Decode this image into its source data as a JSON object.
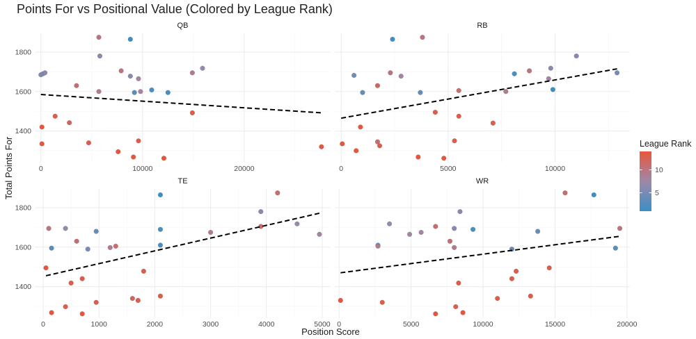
{
  "colors": {
    "rank_low": "#3a8fc4",
    "rank_mid": "#9e88a8",
    "rank_high": "#e8553c",
    "trend": "#000000"
  },
  "chart_data": {
    "type": "scatter",
    "title": "Points For vs Positional Value (Colored by League Rank)",
    "xlabel": "Position Score",
    "ylabel": "Total Points For",
    "grid": true,
    "legend": {
      "title": "League Rank",
      "placement": "right",
      "range": [
        1,
        14
      ],
      "ticks": [
        5,
        10
      ]
    },
    "ylim": [
      1240,
      1895
    ],
    "yticks": [
      1400,
      1600,
      1800
    ],
    "facets": [
      {
        "name": "QB",
        "xlim": [
          -600,
          28500
        ],
        "xticks": [
          0,
          10000,
          20000
        ],
        "xtick_labels": [
          "0",
          "10000",
          "20000"
        ],
        "trend": [
          [
            0,
            1585
          ],
          [
            27600,
            1492
          ]
        ],
        "points": [
          {
            "x": 0,
            "y": 1685,
            "rank": 6
          },
          {
            "x": 200,
            "y": 1690,
            "rank": 5
          },
          {
            "x": 400,
            "y": 1695,
            "rank": 6
          },
          {
            "x": 100,
            "y": 1420,
            "rank": 14
          },
          {
            "x": 100,
            "y": 1335,
            "rank": 14
          },
          {
            "x": 1400,
            "y": 1475,
            "rank": 13
          },
          {
            "x": 2800,
            "y": 1442,
            "rank": 12
          },
          {
            "x": 3500,
            "y": 1630,
            "rank": 11
          },
          {
            "x": 4700,
            "y": 1340,
            "rank": 13
          },
          {
            "x": 5700,
            "y": 1875,
            "rank": 10
          },
          {
            "x": 5800,
            "y": 1780,
            "rank": 6
          },
          {
            "x": 5700,
            "y": 1600,
            "rank": 9
          },
          {
            "x": 7600,
            "y": 1295,
            "rank": 14
          },
          {
            "x": 7900,
            "y": 1705,
            "rank": 10
          },
          {
            "x": 8800,
            "y": 1865,
            "rank": 1
          },
          {
            "x": 8800,
            "y": 1678,
            "rank": 6
          },
          {
            "x": 9200,
            "y": 1595,
            "rank": 3
          },
          {
            "x": 9100,
            "y": 1268,
            "rank": 14
          },
          {
            "x": 9600,
            "y": 1665,
            "rank": 8
          },
          {
            "x": 9600,
            "y": 1350,
            "rank": 13
          },
          {
            "x": 9800,
            "y": 1600,
            "rank": 8
          },
          {
            "x": 10900,
            "y": 1608,
            "rank": 2
          },
          {
            "x": 12100,
            "y": 1262,
            "rank": 14
          },
          {
            "x": 12500,
            "y": 1595,
            "rank": 2
          },
          {
            "x": 14900,
            "y": 1695,
            "rank": 9
          },
          {
            "x": 14900,
            "y": 1492,
            "rank": 13
          },
          {
            "x": 15900,
            "y": 1718,
            "rank": 7
          },
          {
            "x": 27600,
            "y": 1320,
            "rank": 14
          }
        ]
      },
      {
        "name": "RB",
        "xlim": [
          -300,
          13500
        ],
        "xticks": [
          0,
          5000,
          10000
        ],
        "xtick_labels": [
          "0",
          "5000",
          "10000"
        ],
        "trend": [
          [
            0,
            1465
          ],
          [
            12900,
            1715
          ]
        ],
        "points": [
          {
            "x": 50,
            "y": 1335,
            "rank": 14
          },
          {
            "x": 600,
            "y": 1682,
            "rank": 5
          },
          {
            "x": 700,
            "y": 1300,
            "rank": 14
          },
          {
            "x": 900,
            "y": 1420,
            "rank": 14
          },
          {
            "x": 1000,
            "y": 1595,
            "rank": 4
          },
          {
            "x": 1700,
            "y": 1630,
            "rank": 12
          },
          {
            "x": 1700,
            "y": 1345,
            "rank": 11
          },
          {
            "x": 1800,
            "y": 1325,
            "rank": 13
          },
          {
            "x": 2300,
            "y": 1695,
            "rank": 10
          },
          {
            "x": 2400,
            "y": 1865,
            "rank": 1
          },
          {
            "x": 2800,
            "y": 1678,
            "rank": 8
          },
          {
            "x": 3600,
            "y": 1268,
            "rank": 14
          },
          {
            "x": 3700,
            "y": 1595,
            "rank": 4
          },
          {
            "x": 3800,
            "y": 1875,
            "rank": 10
          },
          {
            "x": 4400,
            "y": 1495,
            "rank": 13
          },
          {
            "x": 4800,
            "y": 1262,
            "rank": 14
          },
          {
            "x": 5300,
            "y": 1350,
            "rank": 13
          },
          {
            "x": 5500,
            "y": 1605,
            "rank": 11
          },
          {
            "x": 5500,
            "y": 1475,
            "rank": 13
          },
          {
            "x": 7100,
            "y": 1440,
            "rank": 13
          },
          {
            "x": 7700,
            "y": 1600,
            "rank": 9
          },
          {
            "x": 8100,
            "y": 1690,
            "rank": 2
          },
          {
            "x": 8800,
            "y": 1705,
            "rank": 10
          },
          {
            "x": 9700,
            "y": 1665,
            "rank": 8
          },
          {
            "x": 9800,
            "y": 1718,
            "rank": 6
          },
          {
            "x": 9900,
            "y": 1610,
            "rank": 1
          },
          {
            "x": 11000,
            "y": 1780,
            "rank": 6
          },
          {
            "x": 12900,
            "y": 1695,
            "rank": 5
          }
        ]
      },
      {
        "name": "TE",
        "xlim": [
          -150,
          5150
        ],
        "xticks": [
          0,
          1000,
          2000,
          3000,
          4000,
          5000
        ],
        "xtick_labels": [
          "0",
          "1000",
          "2000",
          "3000",
          "4000",
          "5000"
        ],
        "trend": [
          [
            50,
            1455
          ],
          [
            4950,
            1772
          ]
        ],
        "points": [
          {
            "x": 50,
            "y": 1495,
            "rank": 14
          },
          {
            "x": 100,
            "y": 1695,
            "rank": 10
          },
          {
            "x": 150,
            "y": 1595,
            "rank": 3
          },
          {
            "x": 150,
            "y": 1268,
            "rank": 14
          },
          {
            "x": 400,
            "y": 1695,
            "rank": 7
          },
          {
            "x": 400,
            "y": 1298,
            "rank": 13
          },
          {
            "x": 500,
            "y": 1418,
            "rank": 13
          },
          {
            "x": 600,
            "y": 1630,
            "rank": 11
          },
          {
            "x": 700,
            "y": 1440,
            "rank": 13
          },
          {
            "x": 700,
            "y": 1262,
            "rank": 14
          },
          {
            "x": 800,
            "y": 1590,
            "rank": 5
          },
          {
            "x": 950,
            "y": 1680,
            "rank": 4
          },
          {
            "x": 950,
            "y": 1320,
            "rank": 13
          },
          {
            "x": 1200,
            "y": 1598,
            "rank": 9
          },
          {
            "x": 1300,
            "y": 1605,
            "rank": 11
          },
          {
            "x": 1600,
            "y": 1340,
            "rank": 12
          },
          {
            "x": 1700,
            "y": 1330,
            "rank": 13
          },
          {
            "x": 1800,
            "y": 1478,
            "rank": 13
          },
          {
            "x": 2100,
            "y": 1865,
            "rank": 1
          },
          {
            "x": 2100,
            "y": 1690,
            "rank": 2
          },
          {
            "x": 2100,
            "y": 1610,
            "rank": 2
          },
          {
            "x": 2100,
            "y": 1352,
            "rank": 13
          },
          {
            "x": 3000,
            "y": 1675,
            "rank": 9
          },
          {
            "x": 3900,
            "y": 1780,
            "rank": 6
          },
          {
            "x": 3900,
            "y": 1705,
            "rank": 11
          },
          {
            "x": 4200,
            "y": 1875,
            "rank": 11
          },
          {
            "x": 4550,
            "y": 1718,
            "rank": 7
          },
          {
            "x": 4950,
            "y": 1665,
            "rank": 8
          }
        ]
      },
      {
        "name": "WR",
        "xlim": [
          -300,
          20200
        ],
        "xticks": [
          0,
          5000,
          10000,
          15000,
          20000
        ],
        "xtick_labels": [
          "0",
          "5000",
          "10000",
          "15000",
          "20000"
        ],
        "trend": [
          [
            100,
            1470
          ],
          [
            19500,
            1655
          ]
        ],
        "points": [
          {
            "x": 100,
            "y": 1330,
            "rank": 14
          },
          {
            "x": 2700,
            "y": 1610,
            "rank": 3
          },
          {
            "x": 2700,
            "y": 1605,
            "rank": 9
          },
          {
            "x": 3000,
            "y": 1320,
            "rank": 13
          },
          {
            "x": 3500,
            "y": 1718,
            "rank": 7
          },
          {
            "x": 4900,
            "y": 1665,
            "rank": 8
          },
          {
            "x": 5700,
            "y": 1675,
            "rank": 8
          },
          {
            "x": 6700,
            "y": 1705,
            "rank": 11
          },
          {
            "x": 6700,
            "y": 1262,
            "rank": 14
          },
          {
            "x": 7700,
            "y": 1630,
            "rank": 11
          },
          {
            "x": 8000,
            "y": 1695,
            "rank": 6
          },
          {
            "x": 8000,
            "y": 1598,
            "rank": 9
          },
          {
            "x": 8100,
            "y": 1298,
            "rank": 13
          },
          {
            "x": 8300,
            "y": 1418,
            "rank": 13
          },
          {
            "x": 8400,
            "y": 1780,
            "rank": 6
          },
          {
            "x": 8600,
            "y": 1268,
            "rank": 14
          },
          {
            "x": 9300,
            "y": 1690,
            "rank": 2
          },
          {
            "x": 11000,
            "y": 1340,
            "rank": 13
          },
          {
            "x": 12000,
            "y": 1590,
            "rank": 4
          },
          {
            "x": 12000,
            "y": 1440,
            "rank": 13
          },
          {
            "x": 12300,
            "y": 1478,
            "rank": 13
          },
          {
            "x": 13300,
            "y": 1352,
            "rank": 13
          },
          {
            "x": 13800,
            "y": 1680,
            "rank": 4
          },
          {
            "x": 14600,
            "y": 1495,
            "rank": 13
          },
          {
            "x": 15700,
            "y": 1875,
            "rank": 11
          },
          {
            "x": 17700,
            "y": 1865,
            "rank": 1
          },
          {
            "x": 19200,
            "y": 1595,
            "rank": 3
          },
          {
            "x": 19500,
            "y": 1695,
            "rank": 10
          }
        ]
      }
    ]
  }
}
